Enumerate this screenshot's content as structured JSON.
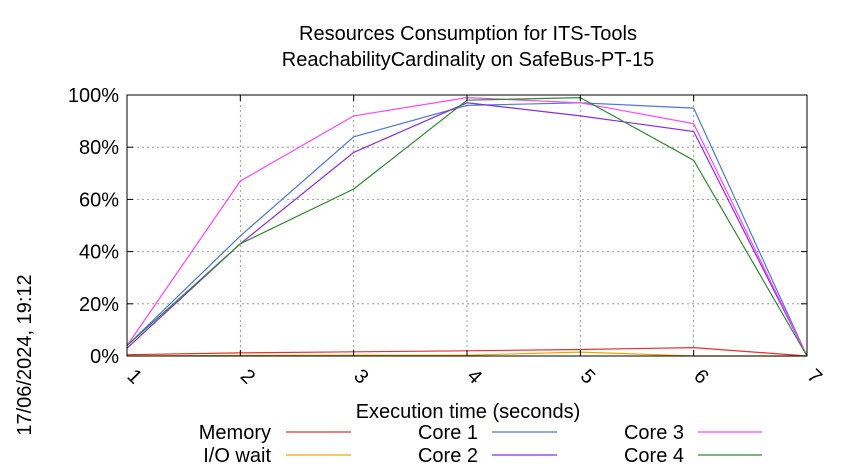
{
  "chart_data": {
    "type": "line",
    "title": "Resources Consumption for ITS-Tools",
    "subtitle": "ReachabilityCardinality on SafeBus-PT-15",
    "xlabel": "Execution time (seconds)",
    "ylabel": "",
    "side_label": "17/06/2024, 19:12",
    "x": [
      1,
      2,
      3,
      4,
      5,
      6,
      7
    ],
    "x_ticks": [
      "1",
      "2",
      "3",
      "4",
      "5",
      "6",
      "7"
    ],
    "xlim": [
      1,
      7
    ],
    "ylim": [
      0,
      100
    ],
    "y_ticks": [
      "0%",
      "20%",
      "40%",
      "60%",
      "80%",
      "100%"
    ],
    "grid": true,
    "legend_position": "bottom",
    "series": [
      {
        "name": "Memory",
        "color": "#e8302a",
        "values": [
          0.5,
          1.2,
          1.6,
          2.0,
          2.5,
          3.2,
          0
        ]
      },
      {
        "name": "I/O wait",
        "color": "#f5a300",
        "values": [
          0.0,
          0.2,
          0.3,
          0.3,
          1.5,
          0.0,
          0
        ]
      },
      {
        "name": "Core 1",
        "color": "#4a78d8",
        "values": [
          4,
          46,
          84,
          96,
          97,
          95,
          0
        ]
      },
      {
        "name": "Core 2",
        "color": "#8a2be2",
        "values": [
          3,
          43,
          78,
          97,
          92,
          86,
          0
        ]
      },
      {
        "name": "Core 3",
        "color": "#ff44ff",
        "values": [
          4,
          67,
          92,
          99,
          97,
          89,
          0
        ]
      },
      {
        "name": "Core 4",
        "color": "#2e8b2e",
        "values": [
          4,
          43,
          64,
          98,
          99,
          75,
          0
        ]
      }
    ]
  }
}
